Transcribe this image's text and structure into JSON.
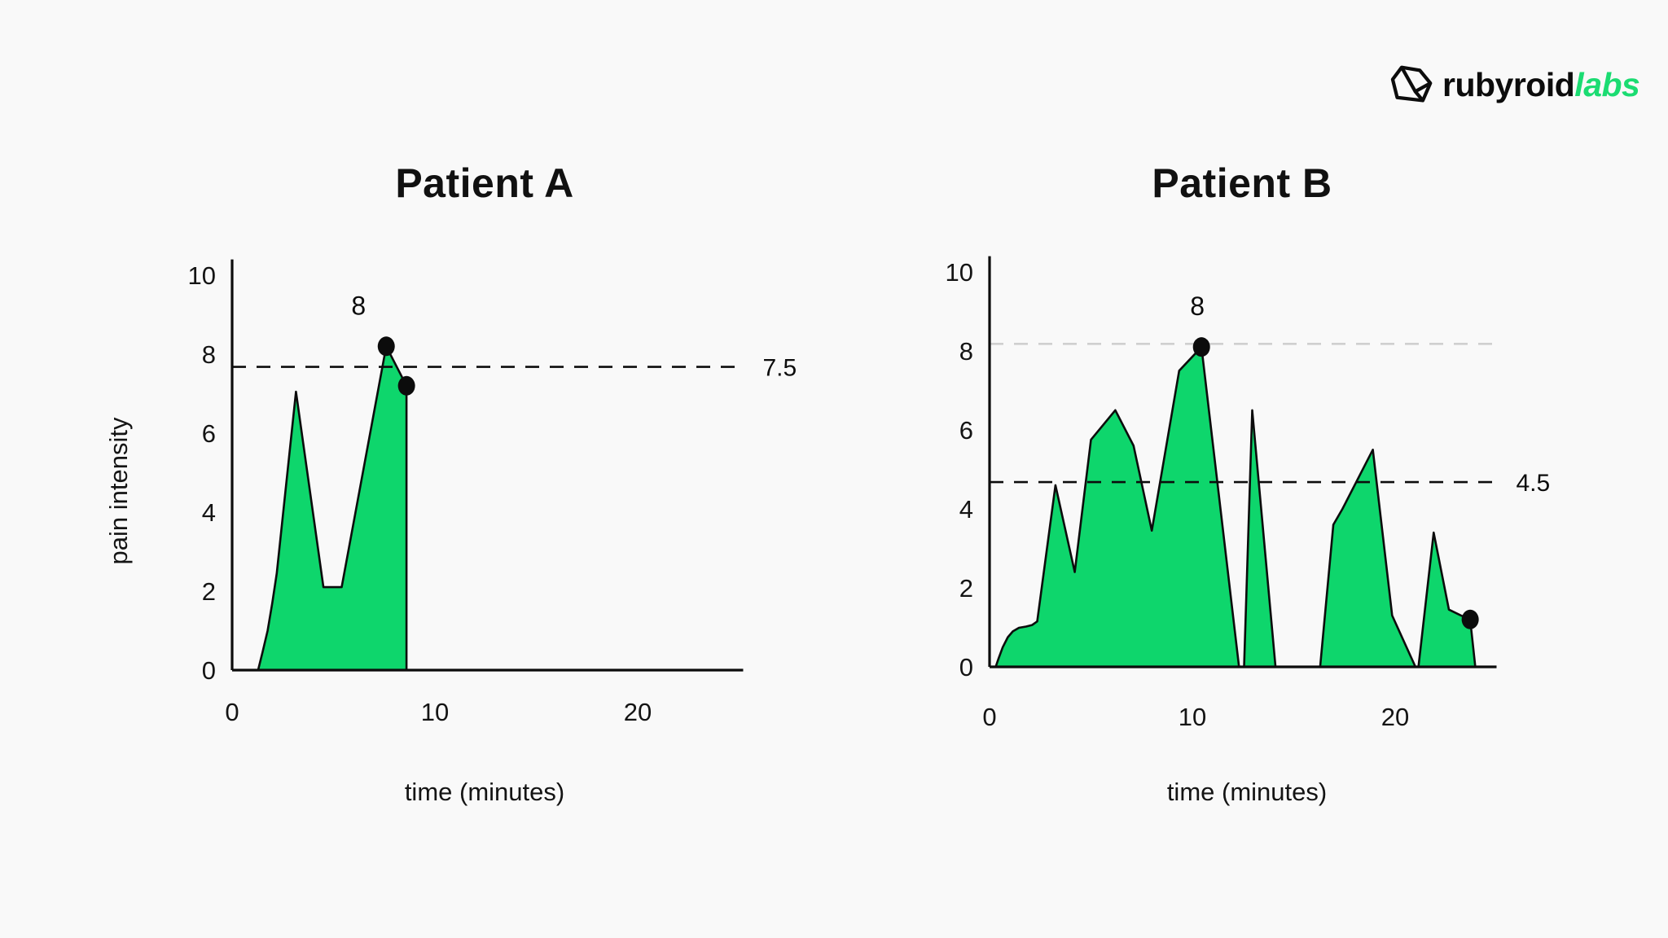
{
  "page": {
    "background_color": "#f9f9f9",
    "text_color": "#0c0c0c"
  },
  "logo": {
    "brand_black": "rubyroid",
    "brand_green": "labs",
    "green_hex": "#1bdc72",
    "icon": "gem-icon"
  },
  "chart_data": [
    {
      "type": "area",
      "title": "Patient A",
      "xlabel": "time (minutes)",
      "ylabel": "pain intensity",
      "xlim": [
        0,
        25.2
      ],
      "ylim": [
        0,
        10.4
      ],
      "xticks": [
        0,
        10,
        20
      ],
      "yticks": [
        0,
        2,
        4,
        6,
        8,
        10
      ],
      "grid": false,
      "fill_color": "#0ed66c",
      "line_color": "#0c0c0c",
      "series": [
        {
          "name": "pain intensity",
          "points": [
            [
              1.28,
              0
            ],
            [
              1.5,
              0.45
            ],
            [
              1.75,
              1.0
            ],
            [
              1.98,
              1.7
            ],
            [
              2.2,
              2.45
            ],
            [
              3.15,
              7.05
            ],
            [
              4.5,
              2.1
            ],
            [
              5.4,
              2.1
            ],
            [
              7.6,
              8.2
            ],
            [
              8.6,
              7.2
            ],
            [
              8.6,
              0
            ]
          ]
        }
      ],
      "markers": [
        {
          "x": 7.6,
          "y": 8.2,
          "label": "8",
          "meaning": "peak pain"
        },
        {
          "x": 8.6,
          "y": 7.2,
          "label": "",
          "meaning": "end pain"
        }
      ],
      "reference_lines": [
        {
          "y": 7.5,
          "label": "7.5",
          "color": "#0c0c0c",
          "style": "dashed",
          "meaning": "peak-end average"
        }
      ]
    },
    {
      "type": "area",
      "title": "Patient B",
      "xlabel": "time (minutes)",
      "ylabel": "",
      "xlim": [
        0,
        25.0
      ],
      "ylim": [
        0,
        10.4
      ],
      "xticks": [
        0,
        10,
        20
      ],
      "yticks": [
        0,
        2,
        4,
        6,
        8,
        10
      ],
      "grid": false,
      "fill_color": "#0ed66c",
      "line_color": "#0c0c0c",
      "series": [
        {
          "name": "pain intensity",
          "points": [
            [
              0.3,
              0
            ],
            [
              0.45,
              0.22
            ],
            [
              0.65,
              0.5
            ],
            [
              0.9,
              0.75
            ],
            [
              1.15,
              0.9
            ],
            [
              1.45,
              0.99
            ],
            [
              1.8,
              1.02
            ],
            [
              2.1,
              1.06
            ],
            [
              2.35,
              1.15
            ],
            [
              3.25,
              4.6
            ],
            [
              4.2,
              2.4
            ],
            [
              5.0,
              5.75
            ],
            [
              6.2,
              6.5
            ],
            [
              7.1,
              5.6
            ],
            [
              8.0,
              3.45
            ],
            [
              9.35,
              7.5
            ],
            [
              10.45,
              8.1
            ],
            [
              12.3,
              0
            ],
            [
              12.55,
              0
            ],
            [
              12.95,
              6.5
            ],
            [
              14.1,
              0
            ],
            [
              16.3,
              0
            ],
            [
              16.95,
              3.6
            ],
            [
              17.4,
              4.0
            ],
            [
              18.9,
              5.5
            ],
            [
              19.85,
              1.3
            ],
            [
              21.0,
              0
            ],
            [
              21.15,
              0
            ],
            [
              21.9,
              3.4
            ],
            [
              22.65,
              1.45
            ],
            [
              23.25,
              1.3
            ],
            [
              23.7,
              1.2
            ],
            [
              23.95,
              0
            ]
          ]
        }
      ],
      "markers": [
        {
          "x": 10.45,
          "y": 8.1,
          "label": "8",
          "meaning": "peak pain"
        },
        {
          "x": 23.7,
          "y": 1.2,
          "label": "",
          "meaning": "end pain"
        }
      ],
      "reference_lines": [
        {
          "y": 8.0,
          "label": "",
          "color": "#cfcfcf",
          "style": "dashed",
          "meaning": "peak level"
        },
        {
          "y": 4.5,
          "label": "4.5",
          "color": "#0c0c0c",
          "style": "dashed",
          "meaning": "peak-end average"
        }
      ]
    }
  ]
}
